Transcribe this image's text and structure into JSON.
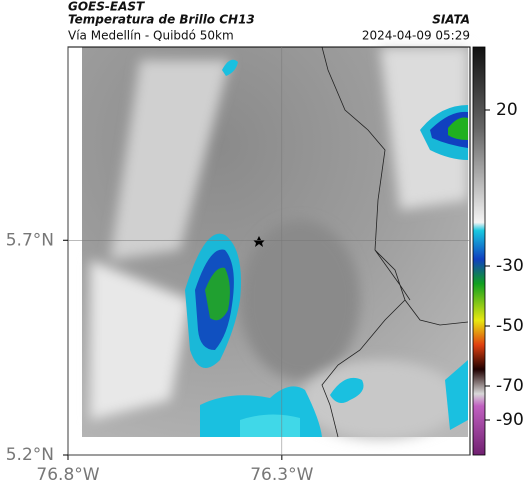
{
  "header": {
    "left": [
      "GOES-EAST",
      "Temperatura de Brillo CH13",
      "Vía Medellín - Quibdó 50km"
    ],
    "right": [
      "SIATA",
      "2024-04-09 05:29"
    ]
  },
  "map": {
    "lon_range": [
      -76.8,
      -75.86
    ],
    "lat_range": [
      5.2,
      6.15
    ],
    "lon_ticks": [
      {
        "value": -76.8,
        "label": "76.8°W"
      },
      {
        "value": -76.3,
        "label": "76.3°W"
      }
    ],
    "lat_ticks": [
      {
        "value": 5.7,
        "label": "5.7°N"
      },
      {
        "value": 5.2,
        "label": "5.2°N"
      }
    ]
  },
  "colorbar": {
    "ticks": [
      20,
      -30,
      -50,
      -70,
      -90
    ]
  }
}
